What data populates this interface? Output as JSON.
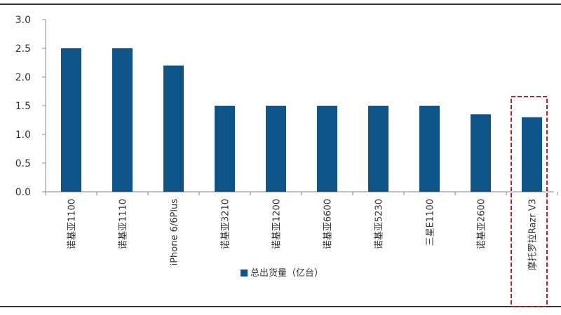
{
  "chart_data": {
    "type": "bar",
    "categories": [
      "诺基亚1100",
      "诺基亚1110",
      "iPhone 6/6Plus",
      "诺基亚3210",
      "诺基亚1200",
      "诺基亚6600",
      "诺基亚5230",
      "三星E1100",
      "诺基亚2600",
      "摩托罗拉Razr V3"
    ],
    "series": [
      {
        "name": "总出货量（亿台）",
        "values": [
          2.5,
          2.5,
          2.2,
          1.5,
          1.5,
          1.5,
          1.5,
          1.5,
          1.35,
          1.3
        ]
      }
    ],
    "ylim": [
      0,
      3.0
    ],
    "yticks": [
      "0.0",
      "0.5",
      "1.0",
      "1.5",
      "2.0",
      "2.5",
      "3.0"
    ],
    "grid": false,
    "legend_position": "bottom",
    "highlighted_category": "摩托罗拉Razr V3",
    "colors": {
      "bar": "#0e5488",
      "highlight_box": "#b0242a",
      "axis": "#888888",
      "frame": "#333333"
    }
  }
}
